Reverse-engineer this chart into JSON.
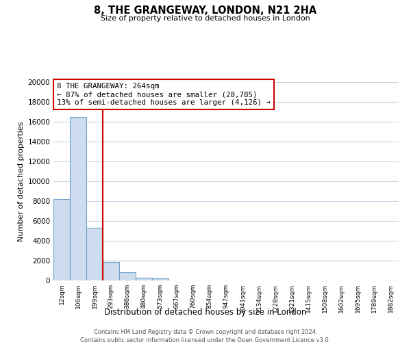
{
  "title": "8, THE GRANGEWAY, LONDON, N21 2HA",
  "subtitle": "Size of property relative to detached houses in London",
  "xlabel": "Distribution of detached houses by size in London",
  "ylabel": "Number of detached properties",
  "bar_values": [
    8200,
    16500,
    5300,
    1850,
    800,
    280,
    230,
    0,
    0,
    0,
    0,
    0,
    0,
    0,
    0,
    0,
    0,
    0,
    0,
    0,
    0
  ],
  "bar_labels": [
    "12sqm",
    "106sqm",
    "199sqm",
    "293sqm",
    "386sqm",
    "480sqm",
    "573sqm",
    "667sqm",
    "760sqm",
    "854sqm",
    "947sqm",
    "1041sqm",
    "1134sqm",
    "1228sqm",
    "1321sqm",
    "1415sqm",
    "1508sqm",
    "1602sqm",
    "1695sqm",
    "1789sqm",
    "1882sqm"
  ],
  "bar_color": "#cddcee",
  "bar_edge_color": "#6fa0c8",
  "vline_x": 2.5,
  "vline_color": "#cc0000",
  "annotation_title": "8 THE GRANGEWAY: 264sqm",
  "annotation_line1": "← 87% of detached houses are smaller (28,785)",
  "annotation_line2": "13% of semi-detached houses are larger (4,126) →",
  "annotation_box_color": "#ffffff",
  "annotation_box_edge_color": "#cc0000",
  "ylim": [
    0,
    20000
  ],
  "yticks": [
    0,
    2000,
    4000,
    6000,
    8000,
    10000,
    12000,
    14000,
    16000,
    18000,
    20000
  ],
  "footer_line1": "Contains HM Land Registry data © Crown copyright and database right 2024.",
  "footer_line2": "Contains public sector information licensed under the Open Government Licence v3.0.",
  "background_color": "#ffffff",
  "grid_color": "#c8d4e4"
}
